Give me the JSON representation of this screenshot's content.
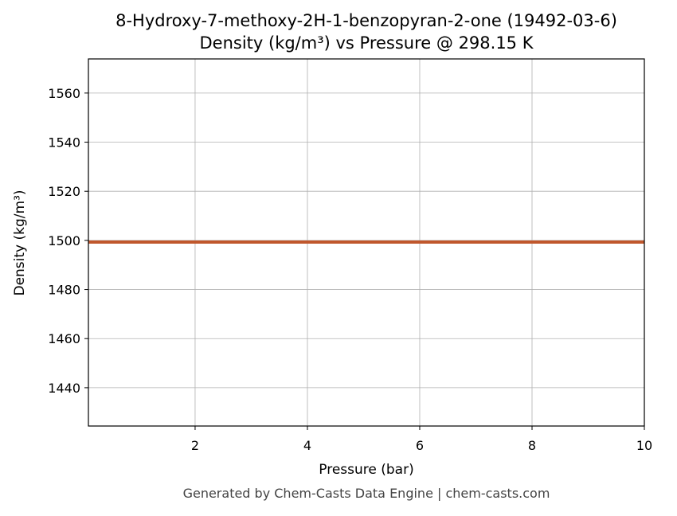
{
  "chart_data": {
    "type": "line",
    "title": "8-Hydroxy-7-methoxy-2H-1-benzopyran-2-one (19492-03-6)",
    "subtitle": "Density (kg/m³) vs Pressure @ 298.15 K",
    "x_label": "Pressure (bar)",
    "y_label": "Density (kg/m³)",
    "footer": "Generated by Chem-Casts Data Engine | chem-casts.com",
    "x": [
      0.1,
      10
    ],
    "series": [
      {
        "name": "Density",
        "color": "#c0572c",
        "values": [
          1499.3,
          1499.3
        ]
      }
    ],
    "xlim": [
      0.1,
      10
    ],
    "xticks": [
      2,
      4,
      6,
      8,
      10
    ],
    "ylim": [
      1424.4,
      1573.9
    ],
    "yticks": [
      1440,
      1460,
      1480,
      1500,
      1520,
      1540,
      1560
    ],
    "grid": true
  }
}
